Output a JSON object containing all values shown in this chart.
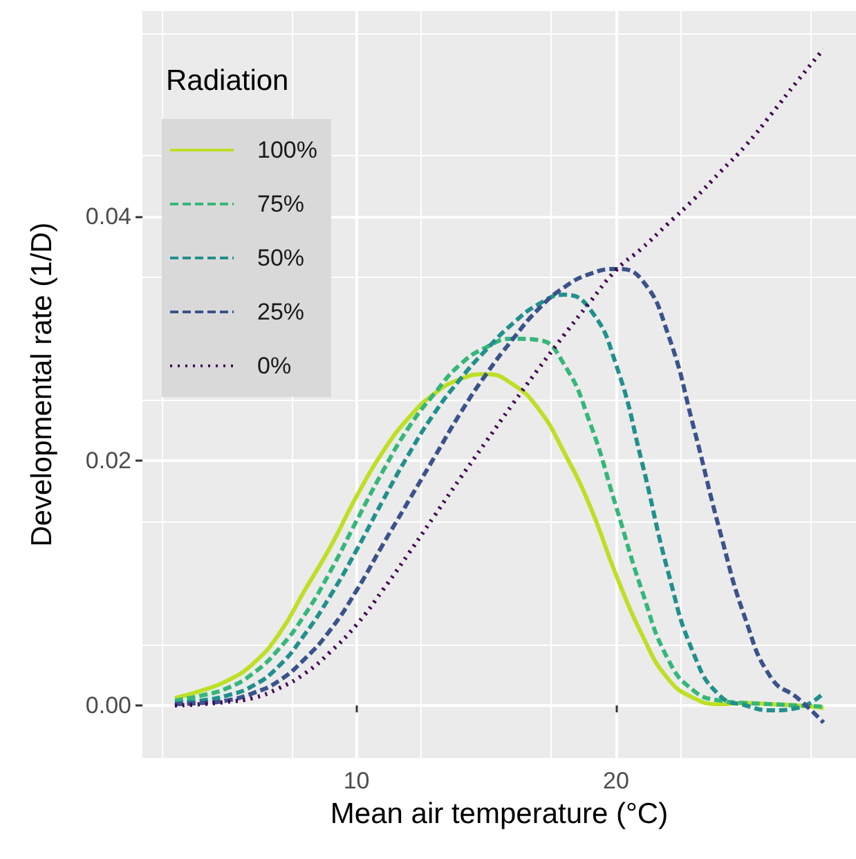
{
  "chart_data": {
    "type": "line",
    "xlabel": "Mean air temperature (°C)",
    "ylabel": "Developmental rate (1/D)",
    "legend_title": "Radiation",
    "x": [
      3,
      4,
      5,
      6,
      7,
      8,
      9,
      10,
      11,
      12,
      13,
      14,
      15,
      16,
      17,
      18,
      19,
      20,
      21,
      22,
      23,
      24,
      25,
      26,
      27,
      28
    ],
    "series": [
      {
        "name": "100%",
        "color": "#bddf26",
        "line_style": "solid",
        "values": [
          0.0006,
          0.0012,
          0.002,
          0.0034,
          0.0058,
          0.0094,
          0.013,
          0.0171,
          0.0207,
          0.0235,
          0.0255,
          0.0267,
          0.0271,
          0.0263,
          0.0243,
          0.0207,
          0.0163,
          0.0107,
          0.0058,
          0.0022,
          0.0006,
          0.0001,
          0.0002,
          0.0001,
          0,
          -0.0002
        ]
      },
      {
        "name": "75%",
        "color": "#35b779",
        "line_style": "dashed",
        "values": [
          0.0004,
          0.0008,
          0.0014,
          0.0026,
          0.0046,
          0.0074,
          0.011,
          0.0151,
          0.0191,
          0.0227,
          0.0255,
          0.0279,
          0.0293,
          0.03,
          0.0299,
          0.0279,
          0.0231,
          0.0163,
          0.0094,
          0.0038,
          0.0012,
          0.0004,
          0.0002,
          0.0001,
          0,
          -0.0001
        ]
      },
      {
        "name": "50%",
        "color": "#21908d",
        "line_style": "dashed",
        "values": [
          0.0002,
          0.0004,
          0.0008,
          0.0016,
          0.0032,
          0.0058,
          0.009,
          0.0127,
          0.0167,
          0.0205,
          0.0239,
          0.0267,
          0.0291,
          0.0312,
          0.0328,
          0.0336,
          0.0324,
          0.0279,
          0.0199,
          0.011,
          0.0042,
          0.0008,
          0,
          -0.0004,
          -0.0002,
          0.001
        ]
      },
      {
        "name": "25%",
        "color": "#3b528b",
        "line_style": "dashed",
        "values": [
          0.0001,
          0.0002,
          0.0004,
          0.001,
          0.002,
          0.0038,
          0.0062,
          0.0094,
          0.0131,
          0.0167,
          0.0203,
          0.0239,
          0.0271,
          0.0299,
          0.0324,
          0.0342,
          0.0353,
          0.0357,
          0.0348,
          0.0304,
          0.0227,
          0.0143,
          0.007,
          0.0022,
          0.0006,
          -0.0014
        ]
      },
      {
        "name": "0%",
        "color": "#440154",
        "line_style": "dotted",
        "values": [
          0,
          0.0001,
          0.0003,
          0.0006,
          0.0014,
          0.0026,
          0.0044,
          0.0066,
          0.0094,
          0.0124,
          0.0155,
          0.0186,
          0.0216,
          0.0246,
          0.0275,
          0.0303,
          0.033,
          0.0356,
          0.0374,
          0.0394,
          0.0414,
          0.0436,
          0.0458,
          0.0484,
          0.0511,
          0.0537
        ]
      }
    ],
    "xlim": [
      1.75,
      29.25
    ],
    "xticks": [
      10,
      20
    ],
    "ylim": [
      -0.0043,
      0.0568
    ],
    "yticks": [
      {
        "value": 0,
        "label": "0.00"
      },
      {
        "value": 0.02,
        "label": "0.02"
      },
      {
        "value": 0.04,
        "label": "0.04"
      }
    ],
    "grid": true,
    "legend": "top left",
    "marker": "none"
  }
}
